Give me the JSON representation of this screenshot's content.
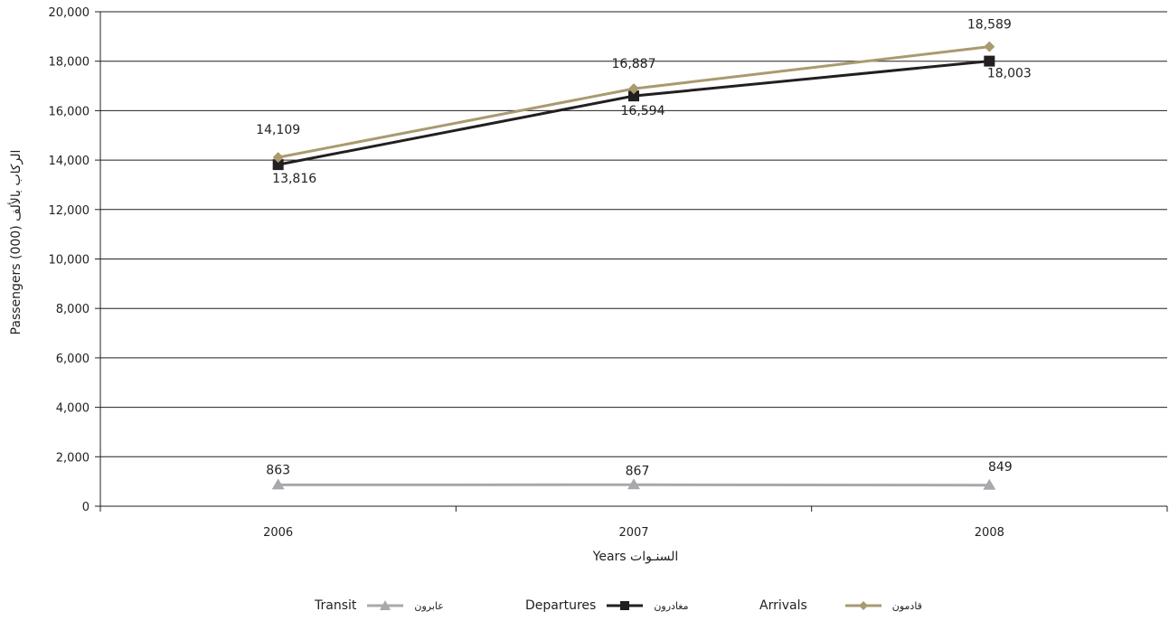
{
  "chart_data": {
    "type": "line",
    "categories": [
      "2006",
      "2007",
      "2008"
    ],
    "series": [
      {
        "name": "Arrivals",
        "name_ar": "قادمون",
        "values": [
          14109,
          16887,
          18589
        ],
        "labels": [
          "14,109",
          "16,887",
          "18,589"
        ],
        "color": "#a99a6f",
        "marker": "diamond"
      },
      {
        "name": "Departures",
        "name_ar": "مغادرون",
        "values": [
          13816,
          16594,
          18003
        ],
        "labels": [
          "13,816",
          "16,594",
          "18,003"
        ],
        "color": "#231f20",
        "marker": "square"
      },
      {
        "name": "Transit",
        "name_ar": "عابرون",
        "values": [
          863,
          867,
          849
        ],
        "labels": [
          "863",
          "867",
          "849"
        ],
        "color": "#a7a9ac",
        "marker": "triangle"
      }
    ],
    "ylim": [
      0,
      20000
    ],
    "yticks": [
      "0",
      "2,000",
      "4,000",
      "6,000",
      "8,000",
      "10,000",
      "12,000",
      "14,000",
      "16,000",
      "18,000",
      "20,000"
    ],
    "xlabel": "Years  السنـوات",
    "ylabel": "Passengers (000)  الركاب بالألف",
    "grid": true,
    "legend_position": "bottom"
  },
  "legend": {
    "transit_en": "Transit",
    "transit_ar": "عابرون",
    "departures_en": "Departures",
    "departures_ar": "مغادرون",
    "arrivals_en": "Arrivals",
    "arrivals_ar": "قادمون"
  }
}
